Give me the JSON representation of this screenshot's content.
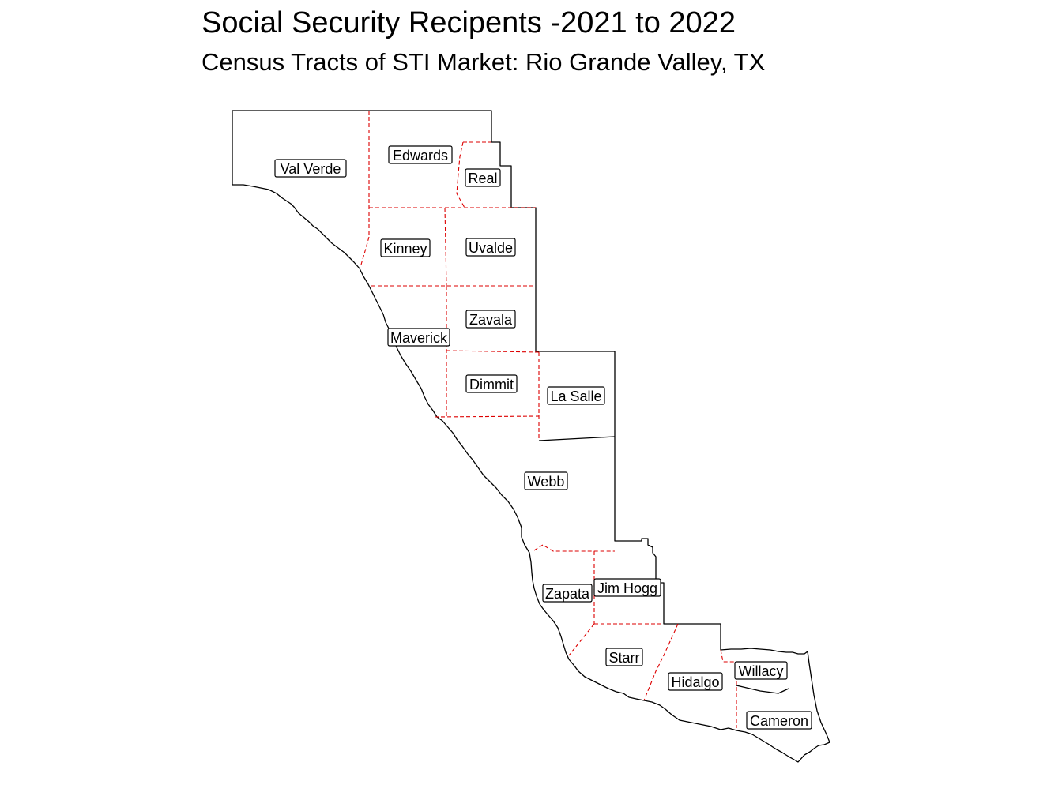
{
  "title": "Social Security Recipents -2021 to 2022",
  "subtitle": "Census Tracts of STI Market: Rio Grande Valley, TX",
  "counties": [
    {
      "name": "Val Verde"
    },
    {
      "name": "Edwards"
    },
    {
      "name": "Real"
    },
    {
      "name": "Kinney"
    },
    {
      "name": "Uvalde"
    },
    {
      "name": "Zavala"
    },
    {
      "name": "Maverick"
    },
    {
      "name": "Dimmit"
    },
    {
      "name": "La Salle"
    },
    {
      "name": "Webb"
    },
    {
      "name": "Zapata"
    },
    {
      "name": "Jim Hogg"
    },
    {
      "name": "Starr"
    },
    {
      "name": "Hidalgo"
    },
    {
      "name": "Willacy"
    },
    {
      "name": "Cameron"
    }
  ],
  "colors": {
    "outline": "#000000",
    "inner_boundary": "#dd0000",
    "label_fill": "#ffffff"
  }
}
